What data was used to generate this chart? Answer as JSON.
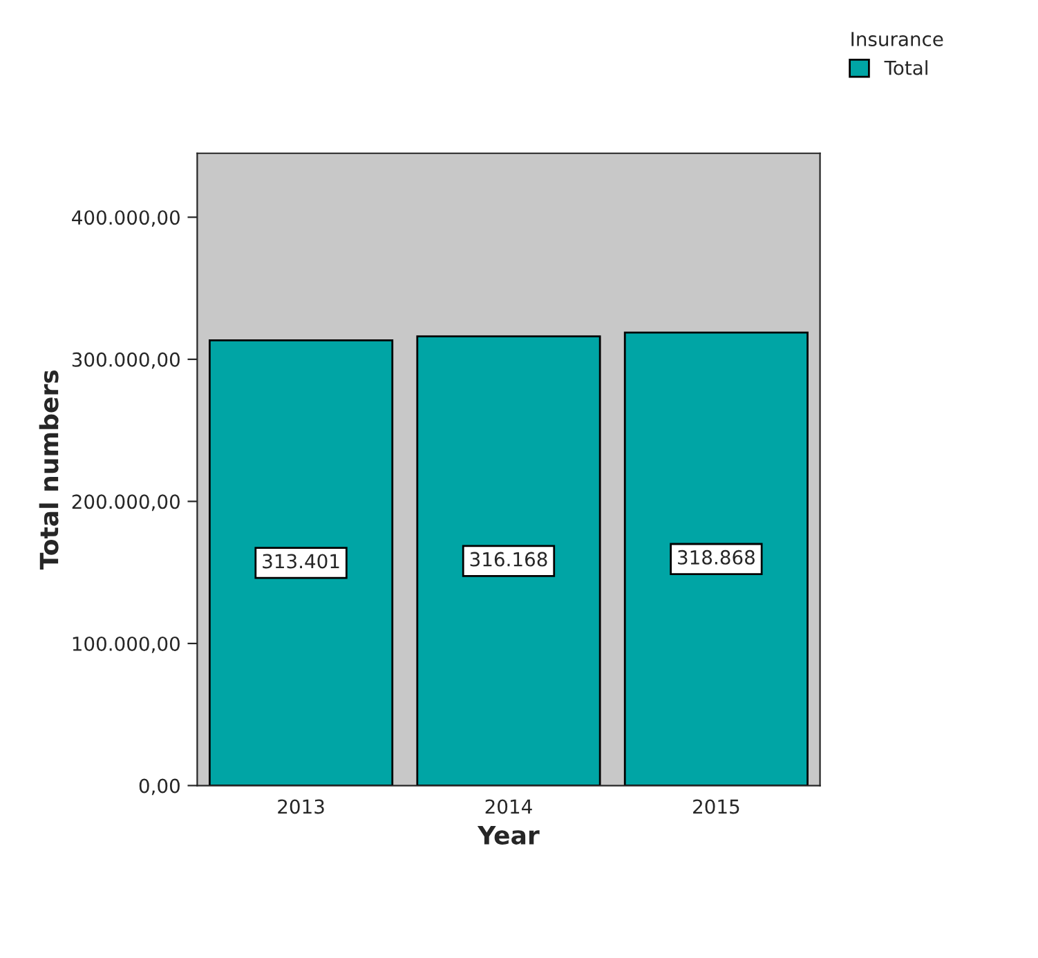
{
  "chart_data": {
    "type": "bar",
    "xlabel": "Year",
    "ylabel": "Total numbers",
    "legend_title": "Insurance",
    "categories": [
      "2013",
      "2014",
      "2015"
    ],
    "series": [
      {
        "name": "Total",
        "color": "#00a5a5",
        "values": [
          313401,
          316168,
          318868
        ],
        "value_labels": [
          "313.401",
          "316.168",
          "318.868"
        ]
      }
    ],
    "ylim": [
      0,
      445000
    ],
    "yticks": [
      {
        "value": 0,
        "label": "0,00"
      },
      {
        "value": 100000,
        "label": "100.000,00"
      },
      {
        "value": 200000,
        "label": "200.000,00"
      },
      {
        "value": 300000,
        "label": "300.000,00"
      },
      {
        "value": 400000,
        "label": "400.000,00"
      }
    ],
    "legend": "top right"
  }
}
